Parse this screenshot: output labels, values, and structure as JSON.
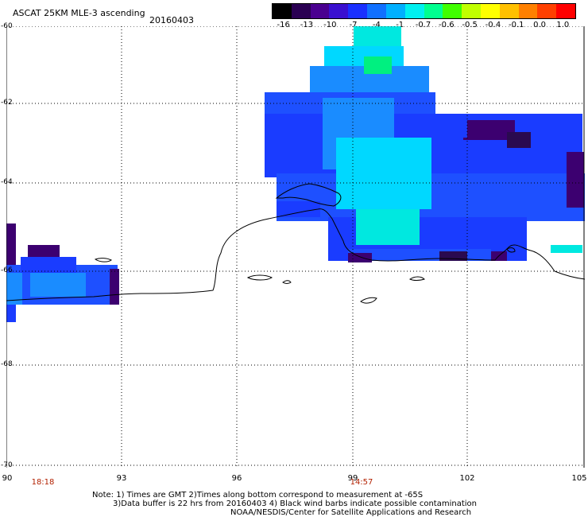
{
  "header": {
    "title": "ASCAT 25KM MLE-3 ascending",
    "date": "20160403"
  },
  "colorbar": {
    "labels": [
      "-16",
      "-13",
      "-10",
      "-7",
      "-4",
      "-1",
      "-0.7",
      "-0.6",
      "-0.5",
      "-0.4",
      "-0.1",
      "0.0",
      "1.0"
    ],
    "colors": [
      "#000000",
      "#2a0052",
      "#4a0090",
      "#3a10d0",
      "#1a30ff",
      "#1070ff",
      "#00b0ff",
      "#00f0f0",
      "#00ff90",
      "#40ff00",
      "#c0ff00",
      "#ffff00",
      "#ffc000",
      "#ff8000",
      "#ff4000",
      "#ff0000"
    ]
  },
  "axes": {
    "lat_labels": [
      "-60",
      "-62",
      "-64",
      "-66",
      "-68",
      "-70"
    ],
    "lon_labels": [
      "90",
      "93",
      "96",
      "99",
      "102",
      "105"
    ],
    "times": [
      "18:18",
      "14:57"
    ]
  },
  "notes": {
    "line1": "Note: 1) Times are GMT 2)Times along bottom correspond to measurement at -65S",
    "line2": "3)Data buffer is 22 hrs from 20160403 4) Black wind barbs indicate possible contamination",
    "line3": "NOAA/NESDIS/Center for Satellite Applications and Research"
  },
  "palette": {
    "deep_purple": "#3c0070",
    "dark_navy": "#2a0a50",
    "blue": "#1a3cff",
    "medium_blue": "#1e50ff",
    "light_blue": "#1a8cff",
    "cyan": "#00d8ff",
    "aqua": "#00e8e0",
    "green": "#00f080"
  }
}
